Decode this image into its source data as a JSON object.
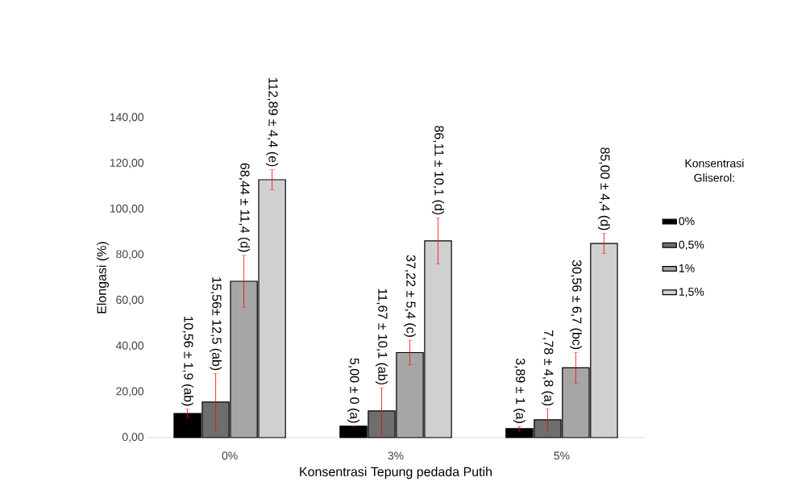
{
  "chart_data": {
    "type": "bar",
    "xlabel": "Konsentrasi Tepung pedada Putih",
    "ylabel": "Elongasi (%)",
    "legend_title": "Konsentrasi Gliserol:",
    "legend": "right",
    "categories": [
      "0%",
      "3%",
      "5%"
    ],
    "ylim": [
      0,
      140
    ],
    "yticks": [
      {
        "value": 0,
        "label": "0,00"
      },
      {
        "value": 20,
        "label": "20,00"
      },
      {
        "value": 40,
        "label": "40,00"
      },
      {
        "value": 60,
        "label": "60,00"
      },
      {
        "value": 80,
        "label": "80,00"
      },
      {
        "value": 100,
        "label": "100,00"
      },
      {
        "value": 120,
        "label": "120,00"
      },
      {
        "value": 140,
        "label": "140,00"
      }
    ],
    "series": [
      {
        "name": "0%",
        "color": "#000000",
        "values": [
          10.56,
          5.0,
          3.89
        ],
        "errors": [
          1.9,
          0,
          1
        ],
        "value_labels": [
          "10,56 ± 1,9 (ab)",
          "5,00 ± 0 (a)",
          "3,89 ± 1 (a)"
        ]
      },
      {
        "name": "0,5%",
        "color": "#6e6e6e",
        "values": [
          15.56,
          11.67,
          7.78
        ],
        "errors": [
          12.5,
          10.1,
          4.8
        ],
        "value_labels": [
          "15,56± 12,5 (ab)",
          "11,67 ± 10,1 (ab)",
          "7,78 ± 4,8 (a)"
        ]
      },
      {
        "name": "1%",
        "color": "#a6a6a6",
        "values": [
          68.44,
          37.22,
          30.56
        ],
        "errors": [
          11.4,
          5.4,
          6.7
        ],
        "value_labels": [
          "68,44 ± 11,4 (d)",
          "37,22 ± 5,4 (c)",
          "30,56 ± 6,7 (bc)"
        ]
      },
      {
        "name": "1,5%",
        "color": "#d0d0d0",
        "values": [
          112.89,
          86.11,
          85.0
        ],
        "errors": [
          4.4,
          10.1,
          4.4
        ],
        "value_labels": [
          "112,89 ± 4,4 (e)",
          "86,11 ± 10,1 (d)",
          "85,00 ± 4,4 (d)"
        ]
      }
    ]
  }
}
